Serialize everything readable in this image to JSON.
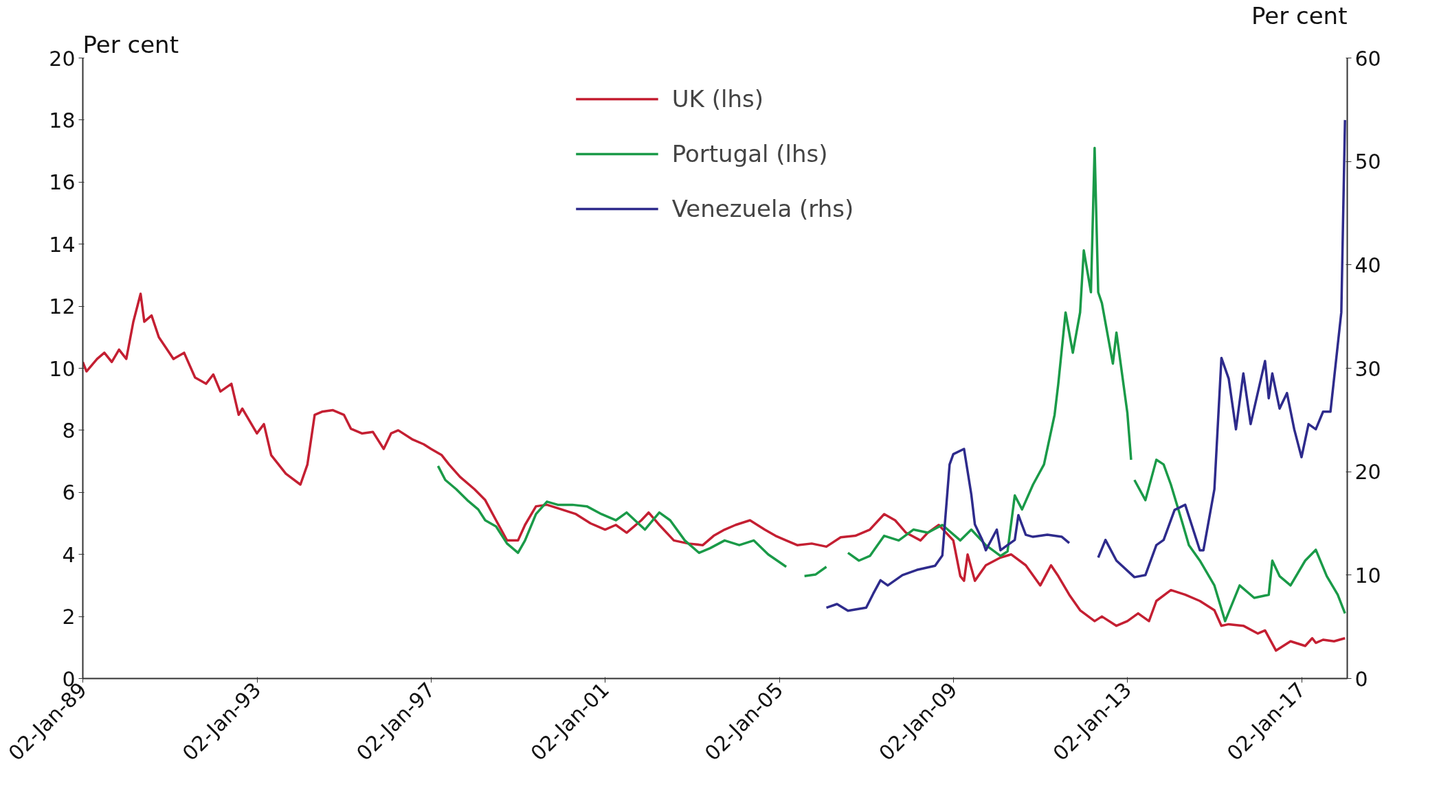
{
  "chart_data": {
    "type": "line",
    "ylabel": "Per cent",
    "y2label": "Per cent",
    "xlim": [
      "1989-01-01",
      "2018-01-20"
    ],
    "xticks": [
      {
        "value": "1989-01-02",
        "label": "02-Jan-89"
      },
      {
        "value": "1993-01-02",
        "label": "02-Jan-93"
      },
      {
        "value": "1997-01-02",
        "label": "02-Jan-97"
      },
      {
        "value": "2001-01-02",
        "label": "02-Jan-01"
      },
      {
        "value": "2005-01-02",
        "label": "02-Jan-05"
      },
      {
        "value": "2009-01-02",
        "label": "02-Jan-09"
      },
      {
        "value": "2013-01-02",
        "label": "02-Jan-13"
      },
      {
        "value": "2017-01-02",
        "label": "02-Jan-17"
      }
    ],
    "ylim": [
      0,
      20
    ],
    "yticks": [
      0,
      2,
      4,
      6,
      8,
      10,
      12,
      14,
      16,
      18,
      20
    ],
    "y2lim": [
      0,
      60
    ],
    "y2ticks": [
      0,
      10,
      20,
      30,
      40,
      50,
      60
    ],
    "legend": "top",
    "grid": false,
    "marker": "none",
    "line_style": "solid",
    "series": [
      {
        "name": "UK (lhs)",
        "color": "#c41f32",
        "x": [
          "1989-01",
          "1989-02",
          "1989-05",
          "1989-07",
          "1989-09",
          "1989-11",
          "1990-01",
          "1990-03",
          "1990-05",
          "1990-06",
          "1990-08",
          "1990-10",
          "1991-02",
          "1991-05",
          "1991-08",
          "1991-11",
          "1992-01",
          "1992-03",
          "1992-06",
          "1992-08",
          "1992-09",
          "1993-01",
          "1993-03",
          "1993-05",
          "1993-09",
          "1994-01",
          "1994-03",
          "1994-05",
          "1994-07",
          "1994-10",
          "1995-01",
          "1995-03",
          "1995-06",
          "1995-09",
          "1995-12",
          "1996-02",
          "1996-04",
          "1996-08",
          "1996-11",
          "1997-01",
          "1997-04",
          "1997-06",
          "1997-09",
          "1998-01",
          "1998-04",
          "1998-07",
          "1998-10",
          "1999-01",
          "1999-03",
          "1999-06",
          "1999-09",
          "2000-01",
          "2000-05",
          "2000-09",
          "2001-01",
          "2001-04",
          "2001-07",
          "2001-11",
          "2002-01",
          "2002-04",
          "2002-08",
          "2002-12",
          "2003-04",
          "2003-07",
          "2003-10",
          "2004-01",
          "2004-05",
          "2004-09",
          "2004-12",
          "2005-03",
          "2005-06",
          "2005-10",
          "2006-02",
          "2006-06",
          "2006-10",
          "2007-02",
          "2007-06",
          "2007-09",
          "2007-12",
          "2008-04",
          "2008-06",
          "2008-09",
          "2009-01",
          "2009-03",
          "2009-04",
          "2009-05",
          "2009-07",
          "2009-10",
          "2010-02",
          "2010-05",
          "2010-09",
          "2011-01",
          "2011-04",
          "2011-06",
          "2011-09",
          "2011-12",
          "2012-04",
          "2012-06",
          "2012-10",
          "2013-01",
          "2013-04",
          "2013-07",
          "2013-09",
          "2014-01",
          "2014-05",
          "2014-09",
          "2015-01",
          "2015-03",
          "2015-05",
          "2015-09",
          "2016-01",
          "2016-03",
          "2016-06",
          "2016-10",
          "2017-02",
          "2017-04",
          "2017-05",
          "2017-07",
          "2017-10",
          "2018-01"
        ],
        "values": [
          10.2,
          9.9,
          10.3,
          10.5,
          10.2,
          10.6,
          10.3,
          11.5,
          12.4,
          11.5,
          11.7,
          11.0,
          10.3,
          10.5,
          9.7,
          9.5,
          9.8,
          9.25,
          9.5,
          8.5,
          8.7,
          7.9,
          8.2,
          7.2,
          6.6,
          6.25,
          6.9,
          8.5,
          8.6,
          8.65,
          8.5,
          8.05,
          7.9,
          7.95,
          7.4,
          7.9,
          8.0,
          7.7,
          7.55,
          7.4,
          7.2,
          6.9,
          6.5,
          6.1,
          5.75,
          5.1,
          4.45,
          4.45,
          4.95,
          5.55,
          5.6,
          5.45,
          5.3,
          5.0,
          4.8,
          4.95,
          4.7,
          5.1,
          5.35,
          4.95,
          4.45,
          4.35,
          4.3,
          4.6,
          4.8,
          4.95,
          5.1,
          4.8,
          4.6,
          4.45,
          4.3,
          4.35,
          4.25,
          4.55,
          4.6,
          4.8,
          5.3,
          5.1,
          4.7,
          4.45,
          4.7,
          4.95,
          4.45,
          3.3,
          3.15,
          4.0,
          3.15,
          3.65,
          3.9,
          4.0,
          3.65,
          3.0,
          3.65,
          3.3,
          2.7,
          2.2,
          1.85,
          2.0,
          1.7,
          1.85,
          2.1,
          1.85,
          2.5,
          2.85,
          2.7,
          2.5,
          2.2,
          1.7,
          1.75,
          1.7,
          1.45,
          1.55,
          0.9,
          1.2,
          1.05,
          1.3,
          1.15,
          1.25,
          1.2,
          1.3
        ]
      },
      {
        "name": "Portugal (lhs)",
        "color": "#1a9a48",
        "x": [
          "1997-03",
          "1997-05",
          "1997-08",
          "1997-11",
          "1998-02",
          "1998-04",
          "1998-07",
          "1998-10",
          "1999-01",
          "1999-03",
          "1999-06",
          "1999-09",
          "1999-12",
          "2000-04",
          "2000-08",
          "2000-12",
          "2001-04",
          "2001-07",
          "2001-12",
          "2002-04",
          "2002-07",
          "2002-11",
          "2003-03",
          "2003-06",
          "2003-10",
          "2004-02",
          "2004-06",
          "2004-10",
          "2005-03",
          "2005-05",
          "2005-08",
          "2005-11",
          "2006-02",
          "2006-05",
          "2006-08",
          "2006-11",
          "2007-02",
          "2007-06",
          "2007-10",
          "2008-02",
          "2008-06",
          "2008-10",
          "2009-03",
          "2009-06",
          "2009-10",
          "2010-02",
          "2010-04",
          "2010-06",
          "2010-08",
          "2010-11",
          "2011-02",
          "2011-05",
          "2011-06",
          "2011-08",
          "2011-10",
          "2011-12",
          "2012-01",
          "2012-03",
          "2012-04",
          "2012-05",
          "2012-06",
          "2012-09",
          "2012-10",
          "2013-01",
          "2013-02",
          "2013-02-15",
          "2013-03",
          "2013-06",
          "2013-09",
          "2013-11",
          "2014-01",
          "2014-04",
          "2014-06",
          "2014-09",
          "2015-01",
          "2015-04",
          "2015-08",
          "2015-12",
          "2016-04",
          "2016-05",
          "2016-07",
          "2016-10",
          "2017-02",
          "2017-05",
          "2017-08",
          "2017-11",
          "2018-01"
        ],
        "values": [
          6.85,
          6.4,
          6.1,
          5.75,
          5.45,
          5.1,
          4.9,
          4.35,
          4.05,
          4.45,
          5.3,
          5.7,
          5.6,
          5.6,
          5.55,
          5.3,
          5.1,
          5.35,
          4.8,
          5.35,
          5.1,
          4.45,
          4.05,
          4.2,
          4.45,
          4.3,
          4.45,
          4.0,
          3.6,
          null,
          3.3,
          3.35,
          3.6,
          null,
          4.05,
          3.8,
          3.95,
          4.6,
          4.45,
          4.8,
          4.7,
          4.95,
          4.45,
          4.8,
          4.3,
          3.95,
          4.1,
          5.9,
          5.45,
          6.25,
          6.9,
          8.5,
          9.5,
          11.8,
          10.5,
          11.8,
          13.8,
          12.45,
          17.1,
          12.45,
          12.1,
          10.15,
          11.15,
          8.55,
          7.05,
          null,
          6.4,
          5.75,
          7.05,
          6.9,
          6.25,
          5.1,
          4.3,
          3.8,
          3.0,
          1.85,
          3.0,
          2.6,
          2.7,
          3.8,
          3.3,
          3.0,
          3.8,
          4.15,
          3.3,
          2.7,
          2.1
        ]
      },
      {
        "name": "Venezuela (rhs)",
        "color": "#2e2b8c",
        "axis": "y2",
        "x": [
          "2006-02",
          "2006-05",
          "2006-08",
          "2007-01",
          "2007-03",
          "2007-05",
          "2007-07",
          "2007-11",
          "2008-03",
          "2008-08",
          "2008-10",
          "2008-12",
          "2009-01",
          "2009-04",
          "2009-06",
          "2009-07",
          "2009-09",
          "2009-10",
          "2010-01",
          "2010-02",
          "2010-04",
          "2010-06",
          "2010-07",
          "2010-09",
          "2010-11",
          "2011-03",
          "2011-07",
          "2011-09",
          "2012-01",
          "2012-05",
          "2012-07",
          "2012-10",
          "2013-03",
          "2013-06",
          "2013-09",
          "2013-11",
          "2014-02",
          "2014-05",
          "2014-09",
          "2014-10",
          "2015-01",
          "2015-03",
          "2015-05",
          "2015-07",
          "2015-09",
          "2015-11",
          "2016-03",
          "2016-04",
          "2016-05",
          "2016-07",
          "2016-09",
          "2016-11",
          "2017-01",
          "2017-03",
          "2017-05",
          "2017-07",
          "2017-09",
          "2017-12",
          "2018-01"
        ],
        "values": [
          6.85,
          7.2,
          6.55,
          6.85,
          8.2,
          9.5,
          9.0,
          10.0,
          10.5,
          10.9,
          11.9,
          20.7,
          21.7,
          22.2,
          17.8,
          14.9,
          13.4,
          12.4,
          14.4,
          12.4,
          12.9,
          13.4,
          15.8,
          13.9,
          13.7,
          13.9,
          13.7,
          13.1,
          null,
          11.7,
          13.4,
          11.4,
          9.8,
          10.0,
          12.9,
          13.4,
          16.3,
          16.8,
          12.4,
          12.4,
          18.3,
          31.0,
          29.0,
          24.1,
          29.5,
          24.6,
          30.7,
          27.1,
          29.5,
          26.1,
          27.6,
          24.1,
          21.4,
          24.6,
          24.1,
          25.8,
          25.8,
          35.4,
          54.0
        ]
      }
    ]
  }
}
